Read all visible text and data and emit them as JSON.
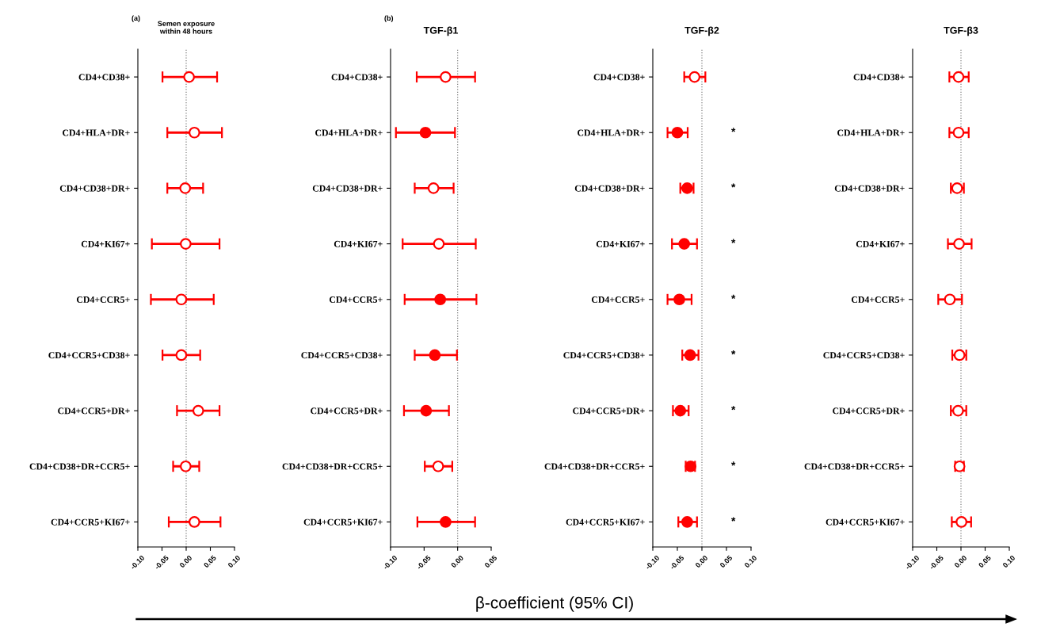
{
  "chart_data": [
    {
      "type": "scatter",
      "orientation": "horizontal",
      "title": "Semen exposure\nwithin 48 hours",
      "annotations": [
        "(a)",
        "β-coefficient (95% CI)"
      ],
      "categories": [
        "CD4+CD38+",
        "CD4+HLA+DR+",
        "CD4+CD38+DR+",
        "CD4+KI67+",
        "CD4+CCR5+",
        "CD4+CCR5+CD38+",
        "CD4+CCR5+DR+",
        "CD4+CD38+DR+CCR5+",
        "CD4+CCR5+KI67+"
      ],
      "xlim": [
        -0.1,
        0.1
      ],
      "xticks": [
        {
          "value": -0.1,
          "label": "-0.10"
        },
        {
          "value": -0.05,
          "label": "-0.05"
        },
        {
          "value": 0,
          "label": "0.00"
        },
        {
          "value": 0.05,
          "label": "0.05"
        },
        {
          "value": 0.1,
          "label": "0.10"
        }
      ],
      "ref_lines": [
        {
          "axis": "x",
          "value": 0,
          "line_style": "dotted",
          "color": "#808080"
        }
      ],
      "marker": "circle",
      "series": [
        {
          "color": "#ff0000",
          "values": [
            0.006,
            0.017,
            -0.002,
            -0.001,
            -0.01,
            -0.01,
            0.025,
            -0.001,
            0.017
          ],
          "errors": [
            [
              -0.049,
              0.064
            ],
            [
              -0.039,
              0.074
            ],
            [
              -0.039,
              0.035
            ],
            [
              -0.071,
              0.069
            ],
            [
              -0.073,
              0.057
            ],
            [
              -0.049,
              0.029
            ],
            [
              -0.019,
              0.069
            ],
            [
              -0.027,
              0.027
            ],
            [
              -0.036,
              0.071
            ]
          ]
        }
      ]
    },
    {
      "type": "scatter",
      "orientation": "horizontal",
      "title": "TGF-β1",
      "annotations": [
        "(b)"
      ],
      "categories": [
        "CD4+CD38+",
        "CD4+HLA+DR+",
        "CD4+CD38+DR+",
        "CD4+KI67+",
        "CD4+CCR5+",
        "CD4+CCR5+CD38+",
        "CD4+CCR5+DR+",
        "CD4+CD38+DR+CCR5+",
        "CD4+CCR5+KI67+"
      ],
      "xlim": [
        -0.1,
        0.05
      ],
      "xticks": [
        {
          "value": -0.1,
          "label": "-0.10"
        },
        {
          "value": -0.05,
          "label": "-0.05"
        },
        {
          "value": 0,
          "label": "0.00"
        },
        {
          "value": 0.05,
          "label": "0.05"
        }
      ],
      "ref_lines": [
        {
          "axis": "x",
          "value": 0,
          "line_style": "dotted",
          "color": "#808080"
        }
      ],
      "marker": "circle",
      "series": [
        {
          "color": "#ff0000",
          "values": [
            -0.018,
            null,
            -0.036,
            -0.028,
            null,
            null,
            null,
            -0.029,
            null
          ],
          "errors": [
            [
              -0.061,
              0.026
            ],
            null,
            [
              -0.064,
              -0.006
            ],
            [
              -0.082,
              0.027
            ],
            null,
            null,
            null,
            [
              -0.049,
              -0.008
            ],
            null
          ]
        },
        {
          "color": "#ff0000",
          "values": [
            null,
            -0.048,
            null,
            null,
            -0.026,
            -0.034,
            -0.047,
            null,
            -0.018
          ],
          "errors": [
            null,
            [
              -0.092,
              -0.004
            ],
            null,
            null,
            [
              -0.079,
              0.028
            ],
            [
              -0.064,
              -0.001
            ],
            [
              -0.08,
              -0.013
            ],
            null,
            [
              -0.06,
              0.026
            ]
          ]
        }
      ]
    },
    {
      "type": "scatter",
      "orientation": "horizontal",
      "title": "TGF-β2",
      "annotations": [
        "*",
        "*",
        "*",
        "*",
        "*",
        "*",
        "*",
        "*"
      ],
      "categories": [
        "CD4+CD38+",
        "CD4+HLA+DR+",
        "CD4+CD38+DR+",
        "CD4+KI67+",
        "CD4+CCR5+",
        "CD4+CCR5+CD38+",
        "CD4+CCR5+DR+",
        "CD4+CD38+DR+CCR5+",
        "CD4+CCR5+KI67+"
      ],
      "xlim": [
        -0.1,
        0.1
      ],
      "xticks": [
        {
          "value": -0.1,
          "label": "-0.10"
        },
        {
          "value": -0.05,
          "label": "-0.05"
        },
        {
          "value": 0,
          "label": "0.00"
        },
        {
          "value": 0.05,
          "label": "0.05"
        },
        {
          "value": 0.1,
          "label": "0.10"
        }
      ],
      "ref_lines": [
        {
          "axis": "x",
          "value": 0,
          "line_style": "dotted",
          "color": "#808080"
        }
      ],
      "marker": "circle",
      "series": [
        {
          "color": "#ff0000",
          "values": [
            -0.015,
            null,
            null,
            null,
            null,
            null,
            null,
            null,
            null
          ],
          "errors": [
            [
              -0.036,
              0.007
            ],
            null,
            null,
            null,
            null,
            null,
            null,
            null,
            null
          ]
        },
        {
          "color": "#ff0000",
          "values": [
            null,
            -0.05,
            -0.03,
            -0.036,
            -0.046,
            -0.024,
            -0.044,
            -0.023,
            -0.03
          ],
          "errors": [
            null,
            [
              -0.07,
              -0.029
            ],
            [
              -0.044,
              -0.017
            ],
            [
              -0.061,
              -0.01
            ],
            [
              -0.07,
              -0.021
            ],
            [
              -0.04,
              -0.007
            ],
            [
              -0.059,
              -0.027
            ],
            [
              -0.033,
              -0.014
            ],
            [
              -0.048,
              -0.01
            ]
          ]
        }
      ]
    },
    {
      "type": "scatter",
      "orientation": "horizontal",
      "title": "TGF-β3",
      "categories": [
        "CD4+CD38+",
        "CD4+HLA+DR+",
        "CD4+CD38+DR+",
        "CD4+KI67+",
        "CD4+CCR5+",
        "CD4+CCR5+CD38+",
        "CD4+CCR5+DR+",
        "CD4+CD38+DR+CCR5+",
        "CD4+CCR5+KI67+"
      ],
      "xlim": [
        -0.1,
        0.1
      ],
      "xticks": [
        {
          "value": -0.1,
          "label": "-0.10"
        },
        {
          "value": -0.05,
          "label": "-0.05"
        },
        {
          "value": 0,
          "label": "0.00"
        },
        {
          "value": 0.05,
          "label": "0.05"
        },
        {
          "value": 0.1,
          "label": "0.10"
        }
      ],
      "ref_lines": [
        {
          "axis": "x",
          "value": 0,
          "line_style": "dotted",
          "color": "#808080"
        }
      ],
      "marker": "circle",
      "series": [
        {
          "color": "#ff0000",
          "values": [
            -0.005,
            -0.005,
            -0.008,
            -0.004,
            -0.023,
            -0.003,
            -0.006,
            -0.003,
            0.001
          ],
          "errors": [
            [
              -0.024,
              0.016
            ],
            [
              -0.024,
              0.016
            ],
            [
              -0.021,
              0.006
            ],
            [
              -0.027,
              0.022
            ],
            [
              -0.047,
              0.002
            ],
            [
              -0.018,
              0.011
            ],
            [
              -0.021,
              0.011
            ],
            [
              -0.012,
              0.006
            ],
            [
              -0.019,
              0.021
            ]
          ]
        }
      ]
    }
  ]
}
